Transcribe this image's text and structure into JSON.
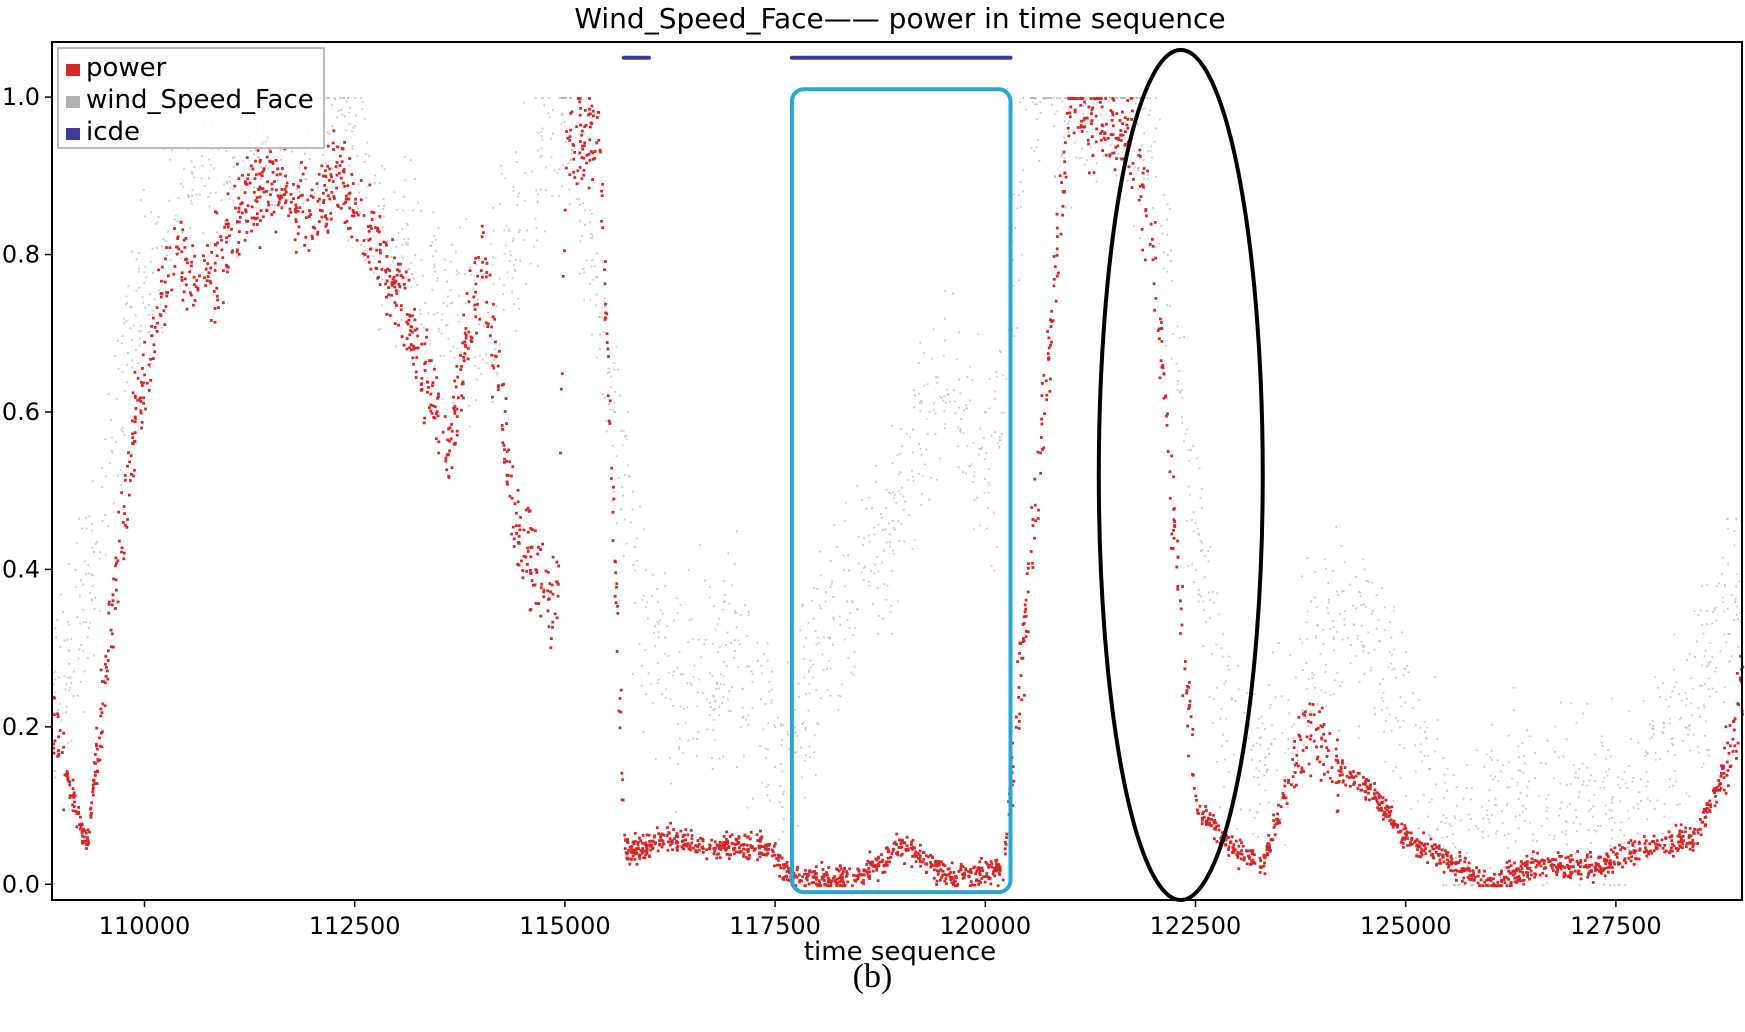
{
  "chart_data": {
    "type": "scatter",
    "title": "Wind_Speed_Face—— power in time sequence",
    "xlabel": "time sequence",
    "ylabel": "",
    "xlim": [
      108900,
      129000
    ],
    "ylim": [
      -0.02,
      1.07
    ],
    "x_ticks": [
      110000,
      112500,
      115000,
      117500,
      120000,
      122500,
      125000,
      127500
    ],
    "x_tick_labels": [
      "110000",
      "112500",
      "115000",
      "117500",
      "120000",
      "122500",
      "125000",
      "127500"
    ],
    "y_ticks": [
      0.0,
      0.2,
      0.4,
      0.6,
      0.8,
      1.0
    ],
    "y_tick_labels": [
      "0.0",
      "0.2",
      "0.4",
      "0.6",
      "0.8",
      "1.0"
    ],
    "grid": false,
    "legend_position": "top-left",
    "series": [
      {
        "name": "power",
        "color": "#d62728",
        "x": [
          108900,
          109300,
          109600,
          109900,
          110300,
          110700,
          111100,
          111500,
          111900,
          112300,
          112800,
          113200,
          113600,
          114000,
          114400,
          114900,
          115000,
          115400,
          115700,
          116200,
          116800,
          117400,
          117700,
          118500,
          119000,
          119600,
          120200,
          121000,
          121700,
          122000,
          122200,
          122500,
          122900,
          123300,
          123800,
          124200,
          124600,
          125000,
          125500,
          126000,
          126600,
          127200,
          127800,
          128400,
          128700,
          129000
        ],
        "y": [
          0.2,
          0.05,
          0.35,
          0.6,
          0.8,
          0.75,
          0.85,
          0.9,
          0.85,
          0.9,
          0.8,
          0.7,
          0.55,
          0.8,
          0.45,
          0.35,
          0.95,
          0.95,
          0.04,
          0.06,
          0.05,
          0.05,
          0.01,
          0.01,
          0.05,
          0.01,
          0.02,
          1.0,
          0.95,
          0.8,
          0.5,
          0.1,
          0.05,
          0.03,
          0.2,
          0.15,
          0.12,
          0.06,
          0.03,
          0.0,
          0.03,
          0.02,
          0.05,
          0.06,
          0.12,
          0.25
        ]
      },
      {
        "name": "wind_Speed_Face",
        "color": "#b0b0b0",
        "x": [
          108900,
          109400,
          109800,
          110500,
          111500,
          112100,
          113000,
          114000,
          115000,
          115600,
          115900,
          116300,
          117000,
          117600,
          118200,
          118900,
          119500,
          120100,
          120500,
          121500,
          122000,
          122400,
          122800,
          123400,
          124000,
          124500,
          125000,
          125600,
          126100,
          126800,
          127600,
          128300,
          129000
        ],
        "y": [
          0.25,
          0.4,
          0.7,
          0.9,
          0.95,
          1.0,
          0.8,
          0.7,
          1.0,
          0.6,
          0.35,
          0.25,
          0.3,
          0.15,
          0.35,
          0.45,
          0.65,
          0.5,
          1.0,
          1.0,
          0.95,
          0.55,
          0.2,
          0.15,
          0.3,
          0.35,
          0.2,
          0.05,
          0.1,
          0.12,
          0.1,
          0.2,
          0.4
        ]
      },
      {
        "name": "icde",
        "color": "#3b3b9b",
        "segments": [
          [
            115700,
            116000
          ],
          [
            117700,
            120300
          ]
        ],
        "y": 1.05
      }
    ],
    "annotations": [
      {
        "shape": "rounded-rectangle",
        "color": "#2aa6d4",
        "x_range": [
          117700,
          120300
        ],
        "y_range": [
          -0.01,
          1.01
        ]
      },
      {
        "shape": "ellipse",
        "color": "#000000",
        "x_range": [
          121350,
          123300
        ],
        "y_range": [
          -0.02,
          1.06
        ]
      }
    ]
  },
  "caption": "(b)"
}
